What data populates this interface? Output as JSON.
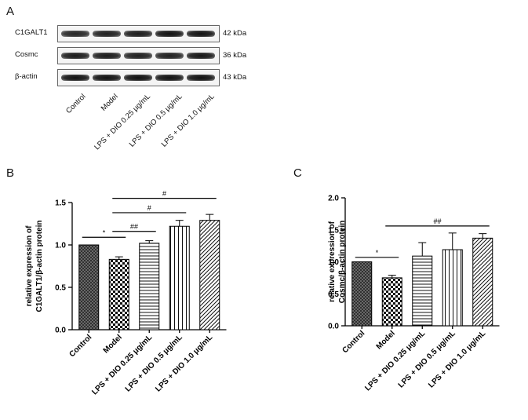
{
  "panels": {
    "a": "A",
    "b": "B",
    "c": "C"
  },
  "blot": {
    "rows": [
      {
        "name": "C1GALT1",
        "kda": "42 kDa",
        "intensity": [
          0.8,
          0.85,
          0.9,
          1.0,
          1.0
        ]
      },
      {
        "name": "Cosmc",
        "kda": "36 kDa",
        "intensity": [
          0.9,
          0.9,
          0.85,
          0.85,
          0.95
        ]
      },
      {
        "name": "β-actin",
        "kda": "43 kDa",
        "intensity": [
          1.0,
          1.0,
          1.0,
          1.0,
          1.0
        ]
      }
    ],
    "lanes": [
      "Control",
      "Model",
      "LPS + DIO 0.25 μg/mL",
      "LPS + DIO 0.5 μg/mL",
      "LPS + DIO 1.0 μg/mL"
    ]
  },
  "chart_data": [
    {
      "type": "bar",
      "panel": "B",
      "categories": [
        "Control",
        "Model",
        "LPS + DIO 0.25 μg/mL",
        "LPS + DIO 0.5 μg/mL",
        "LPS + DIO 1.0 μg/mL"
      ],
      "values": [
        1.0,
        0.83,
        1.02,
        1.22,
        1.29
      ],
      "errors": [
        0.0,
        0.03,
        0.03,
        0.07,
        0.07
      ],
      "patterns": [
        "crosshatch",
        "checker",
        "horizontal",
        "vertical",
        "diagonal"
      ],
      "ylabel_lines": [
        "relative expression of",
        "C1GALT1/β-actin protein"
      ],
      "ylim": [
        0,
        1.5
      ],
      "yticks": [
        "0.0",
        "0.5",
        "1.0",
        "1.5"
      ],
      "ytick_values": [
        0,
        0.5,
        1.0,
        1.5
      ],
      "significance": [
        {
          "from": 0,
          "to": 1,
          "label": "*",
          "y": 1.09
        },
        {
          "from": 1,
          "to": 2,
          "label": "##",
          "y": 1.16
        },
        {
          "from": 1,
          "to": 3,
          "label": "#",
          "y": 1.38
        },
        {
          "from": 1,
          "to": 4,
          "label": "#",
          "y": 1.55
        }
      ]
    },
    {
      "type": "bar",
      "panel": "C",
      "categories": [
        "Control",
        "Model",
        "LPS + DIO 0.25 μg/mL",
        "LPS + DIO 0.5 μg/mL",
        "LPS + DIO 1.0 μg/mL"
      ],
      "values": [
        1.0,
        0.75,
        1.09,
        1.19,
        1.37
      ],
      "errors": [
        0.0,
        0.04,
        0.21,
        0.26,
        0.07
      ],
      "patterns": [
        "crosshatch",
        "checker",
        "horizontal",
        "vertical",
        "diagonal"
      ],
      "ylabel_lines": [
        "relative expression of",
        "Cosmc/β-actin protein"
      ],
      "ylim": [
        0,
        2.0
      ],
      "yticks": [
        "0.0",
        "0.5",
        "1.0",
        "1.5",
        "2.0"
      ],
      "ytick_values": [
        0,
        0.5,
        1.0,
        1.5,
        2.0
      ],
      "significance": [
        {
          "from": 0,
          "to": 1,
          "label": "*",
          "y": 1.07
        },
        {
          "from": 1,
          "to": 4,
          "label": "##",
          "y": 1.56
        }
      ]
    }
  ]
}
